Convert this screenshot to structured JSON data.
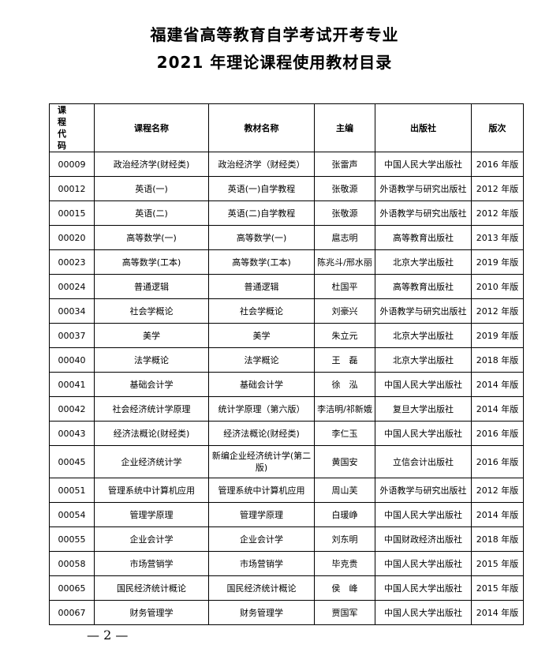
{
  "title_line1": "福建省高等教育自学考试开考专业",
  "title_line2": "2021 年理论课程使用教材目录",
  "table": {
    "headers": [
      "课程代码",
      "课程名称",
      "教材名称",
      "主编",
      "出版社",
      "版次"
    ],
    "header_code_line1": "课 程",
    "header_code_line2": "代 码",
    "rows": [
      [
        "00009",
        "政治经济学(财经类)",
        "政治经济学（财经类）",
        "张雷声",
        "中国人民大学出版社",
        "2016 年版"
      ],
      [
        "00012",
        "英语(一)",
        "英语(一)自学教程",
        "张敬源",
        "外语教学与研究出版社",
        "2012 年版"
      ],
      [
        "00015",
        "英语(二)",
        "英语(二)自学教程",
        "张敬源",
        "外语教学与研究出版社",
        "2012 年版"
      ],
      [
        "00020",
        "高等数学(一)",
        "高等数学(一)",
        "扈志明",
        "高等教育出版社",
        "2013 年版"
      ],
      [
        "00023",
        "高等数学(工本)",
        "高等数学(工本)",
        "陈兆斗/邢水丽",
        "北京大学出版社",
        "2019 年版"
      ],
      [
        "00024",
        "普通逻辑",
        "普通逻辑",
        "杜国平",
        "高等教育出版社",
        "2010 年版"
      ],
      [
        "00034",
        "社会学概论",
        "社会学概论",
        "刘豪兴",
        "外语教学与研究出版社",
        "2012 年版"
      ],
      [
        "00037",
        "美学",
        "美学",
        "朱立元",
        "北京大学出版社",
        "2019 年版"
      ],
      [
        "00040",
        "法学概论",
        "法学概论",
        "王　磊",
        "北京大学出版社",
        "2018 年版"
      ],
      [
        "00041",
        "基础会计学",
        "基础会计学",
        "徐　泓",
        "中国人民大学出版社",
        "2014 年版"
      ],
      [
        "00042",
        "社会经济统计学原理",
        "统计学原理（第六版）",
        "李洁明/祁新娥",
        "复旦大学出版社",
        "2014 年版"
      ],
      [
        "00043",
        "经济法概论(财经类)",
        "经济法概论(财经类)",
        "李仁玉",
        "中国人民大学出版社",
        "2016 年版"
      ],
      [
        "00045",
        "企业经济统计学",
        "新编企业经济统计学(第二版)",
        "黄国安",
        "立信会计出版社",
        "2016 年版"
      ],
      [
        "00051",
        "管理系统中计算机应用",
        "管理系统中计算机应用",
        "周山芙",
        "外语教学与研究出版社",
        "2012 年版"
      ],
      [
        "00054",
        "管理学原理",
        "管理学原理",
        "白瑗峥",
        "中国人民大学出版社",
        "2014 年版"
      ],
      [
        "00055",
        "企业会计学",
        "企业会计学",
        "刘东明",
        "中国财政经济出版社",
        "2018 年版"
      ],
      [
        "00058",
        "市场营销学",
        "市场营销学",
        "毕克贵",
        "中国人民大学出版社",
        "2015 年版"
      ],
      [
        "00065",
        "国民经济统计概论",
        "国民经济统计概论",
        "侯　峰",
        "中国人民大学出版社",
        "2015 年版"
      ],
      [
        "00067",
        "财务管理学",
        "财务管理学",
        "贾国军",
        "中国人民大学出版社",
        "2014 年版"
      ]
    ]
  },
  "page_number": "— 2 —"
}
